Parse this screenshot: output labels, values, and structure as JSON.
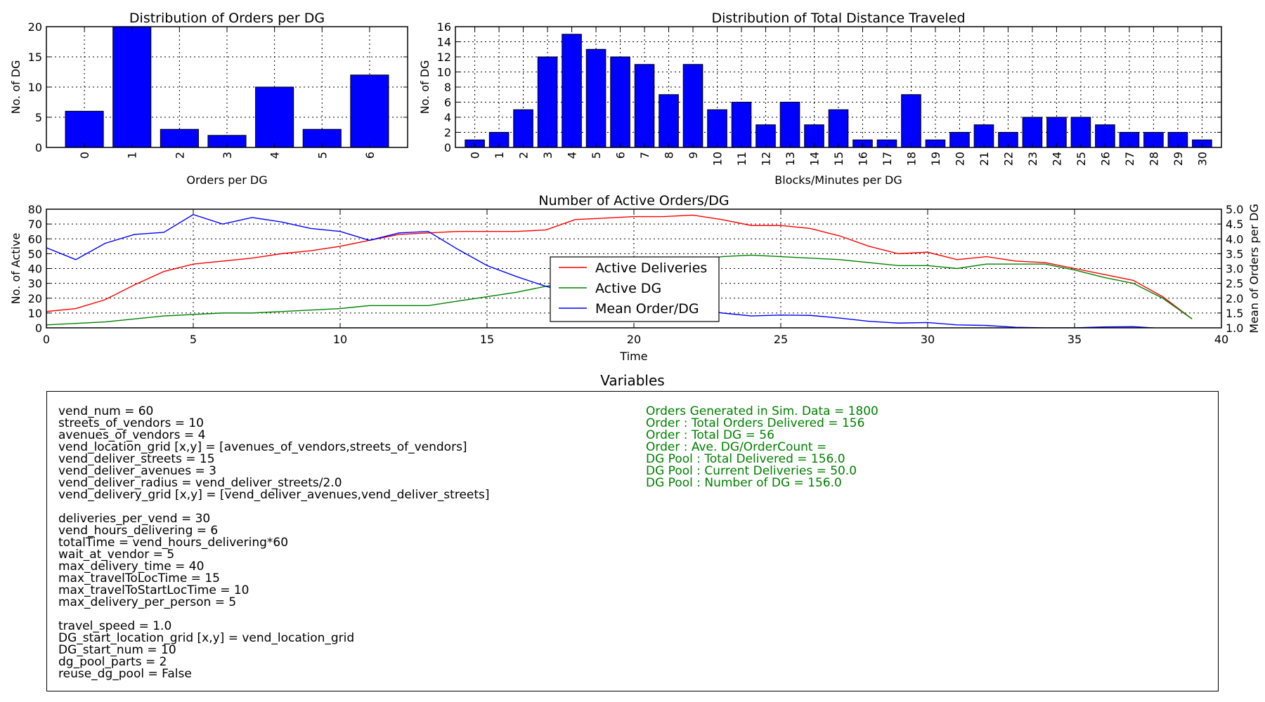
{
  "colors": {
    "bar": "#0000ff",
    "active_deliveries": "#ff0000",
    "active_dg": "#008000",
    "mean_order": "#0000ff",
    "stats_text": "#008000"
  },
  "chart_data": [
    {
      "id": "orders",
      "type": "bar",
      "title": "Distribution of Orders per DG",
      "xlabel": "Orders per DG",
      "ylabel": "No. of DG",
      "categories": [
        "0",
        "1",
        "2",
        "3",
        "4",
        "5",
        "6"
      ],
      "values": [
        6,
        20,
        3,
        2,
        10,
        3,
        12
      ],
      "ylim": [
        0,
        20
      ],
      "yticks": [
        0,
        5,
        10,
        15,
        20
      ],
      "grid": true
    },
    {
      "id": "distance",
      "type": "bar",
      "title": "Distribution of Total Distance Traveled",
      "xlabel": "Blocks/Minutes per DG",
      "ylabel": "No. of DG",
      "categories": [
        "0",
        "1",
        "2",
        "3",
        "4",
        "5",
        "6",
        "7",
        "8",
        "9",
        "10",
        "11",
        "12",
        "13",
        "14",
        "15",
        "16",
        "17",
        "18",
        "19",
        "20",
        "21",
        "22",
        "23",
        "24",
        "25",
        "26",
        "27",
        "28",
        "29",
        "30"
      ],
      "values": [
        1,
        2,
        5,
        12,
        15,
        13,
        12,
        11,
        7,
        11,
        5,
        6,
        3,
        6,
        3,
        5,
        1,
        1,
        7,
        1,
        2,
        3,
        2,
        4,
        4,
        4,
        3,
        2,
        2,
        2,
        1
      ],
      "ylim": [
        0,
        16
      ],
      "yticks": [
        0,
        2,
        4,
        6,
        8,
        10,
        12,
        14,
        16
      ],
      "grid": true
    },
    {
      "id": "active",
      "type": "line",
      "title": "Number of Active Orders/DG",
      "xlabel": "Time",
      "ylabel": "No. of Active",
      "ylabel_right": "Mean of Orders per DG",
      "xlim": [
        0,
        40
      ],
      "xticks": [
        0,
        5,
        10,
        15,
        20,
        25,
        30,
        35,
        40
      ],
      "ylim": [
        0,
        80
      ],
      "yticks": [
        0,
        10,
        20,
        30,
        40,
        50,
        60,
        70,
        80
      ],
      "ylim_right": [
        1.0,
        5.0
      ],
      "yticks_right": [
        "1.0",
        "1.5",
        "2.0",
        "2.5",
        "3.0",
        "3.5",
        "4.0",
        "4.5",
        "5.0"
      ],
      "grid": true,
      "legend_position": "center-right",
      "x": [
        0,
        1,
        2,
        3,
        4,
        5,
        6,
        7,
        8,
        9,
        10,
        11,
        12,
        13,
        14,
        15,
        16,
        17,
        18,
        19,
        20,
        21,
        22,
        23,
        24,
        25,
        26,
        27,
        28,
        29,
        30,
        31,
        32,
        33,
        34,
        35,
        36,
        37,
        38,
        39
      ],
      "series": [
        {
          "name": "Active Deliveries",
          "axis": "left",
          "values": [
            11,
            13,
            19,
            29,
            38,
            43,
            45,
            47,
            50,
            52,
            55,
            59,
            63,
            64,
            65,
            65,
            65,
            66,
            73,
            74,
            75,
            75,
            76,
            73,
            69,
            69,
            67,
            62,
            55,
            50,
            51,
            46,
            48,
            45,
            44,
            40,
            36,
            32,
            21,
            6
          ]
        },
        {
          "name": "Active DG",
          "axis": "left",
          "values": [
            2,
            3,
            4,
            6,
            8,
            9,
            10,
            10,
            11,
            12,
            13,
            15,
            15,
            15,
            18,
            21,
            24,
            28,
            31,
            35,
            38,
            41,
            45,
            48,
            49,
            48,
            47,
            46,
            44,
            42,
            42,
            40,
            43,
            43,
            43,
            39,
            34,
            30,
            20,
            6
          ]
        },
        {
          "name": "Mean Order/DG",
          "axis": "right",
          "values": [
            3.7,
            3.3,
            3.85,
            4.15,
            4.22,
            4.82,
            4.5,
            4.72,
            4.57,
            4.35,
            4.25,
            3.95,
            4.2,
            4.25,
            3.65,
            3.1,
            2.73,
            2.4,
            2.15,
            2.0,
            1.72,
            1.72,
            1.67,
            1.5,
            1.4,
            1.43,
            1.42,
            1.33,
            1.22,
            1.16,
            1.18,
            1.1,
            1.08,
            1.02,
            1.0,
            1.0,
            1.03,
            1.04,
            0.98,
            0.9
          ]
        }
      ]
    }
  ],
  "variables": {
    "title": "Variables",
    "left_groups": [
      [
        "vend_num = 60",
        "streets_of_vendors = 10",
        "avenues_of_vendors = 4",
        "vend_location_grid [x,y] = [avenues_of_vendors,streets_of_vendors]",
        "vend_deliver_streets = 15",
        "vend_deliver_avenues = 3",
        "vend_deliver_radius = vend_deliver_streets/2.0",
        "vend_delivery_grid [x,y] = [vend_deliver_avenues,vend_deliver_streets]"
      ],
      [
        "deliveries_per_vend = 30",
        "vend_hours_delivering = 6",
        "totalTime = vend_hours_delivering*60",
        "wait_at_vendor = 5",
        "max_delivery_time = 40",
        "max_travelToLocTime = 15",
        "max_travelToStartLocTime = 10",
        "max_delivery_per_person = 5"
      ],
      [
        "travel_speed = 1.0",
        "DG_start_location_grid [x,y] = vend_location_grid",
        "DG_start_num = 10",
        "dg_pool_parts = 2",
        "reuse_dg_pool = False"
      ]
    ],
    "right_lines": [
      "Orders Generated in Sim. Data = 1800",
      "Order : Total Orders Delivered = 156",
      "Order : Total DG = 56",
      "Order : Ave. DG/OrderCount =",
      "DG Pool : Total Delivered = 156.0",
      "DG Pool : Current Deliveries = 50.0",
      "DG Pool : Number of DG = 156.0"
    ]
  }
}
